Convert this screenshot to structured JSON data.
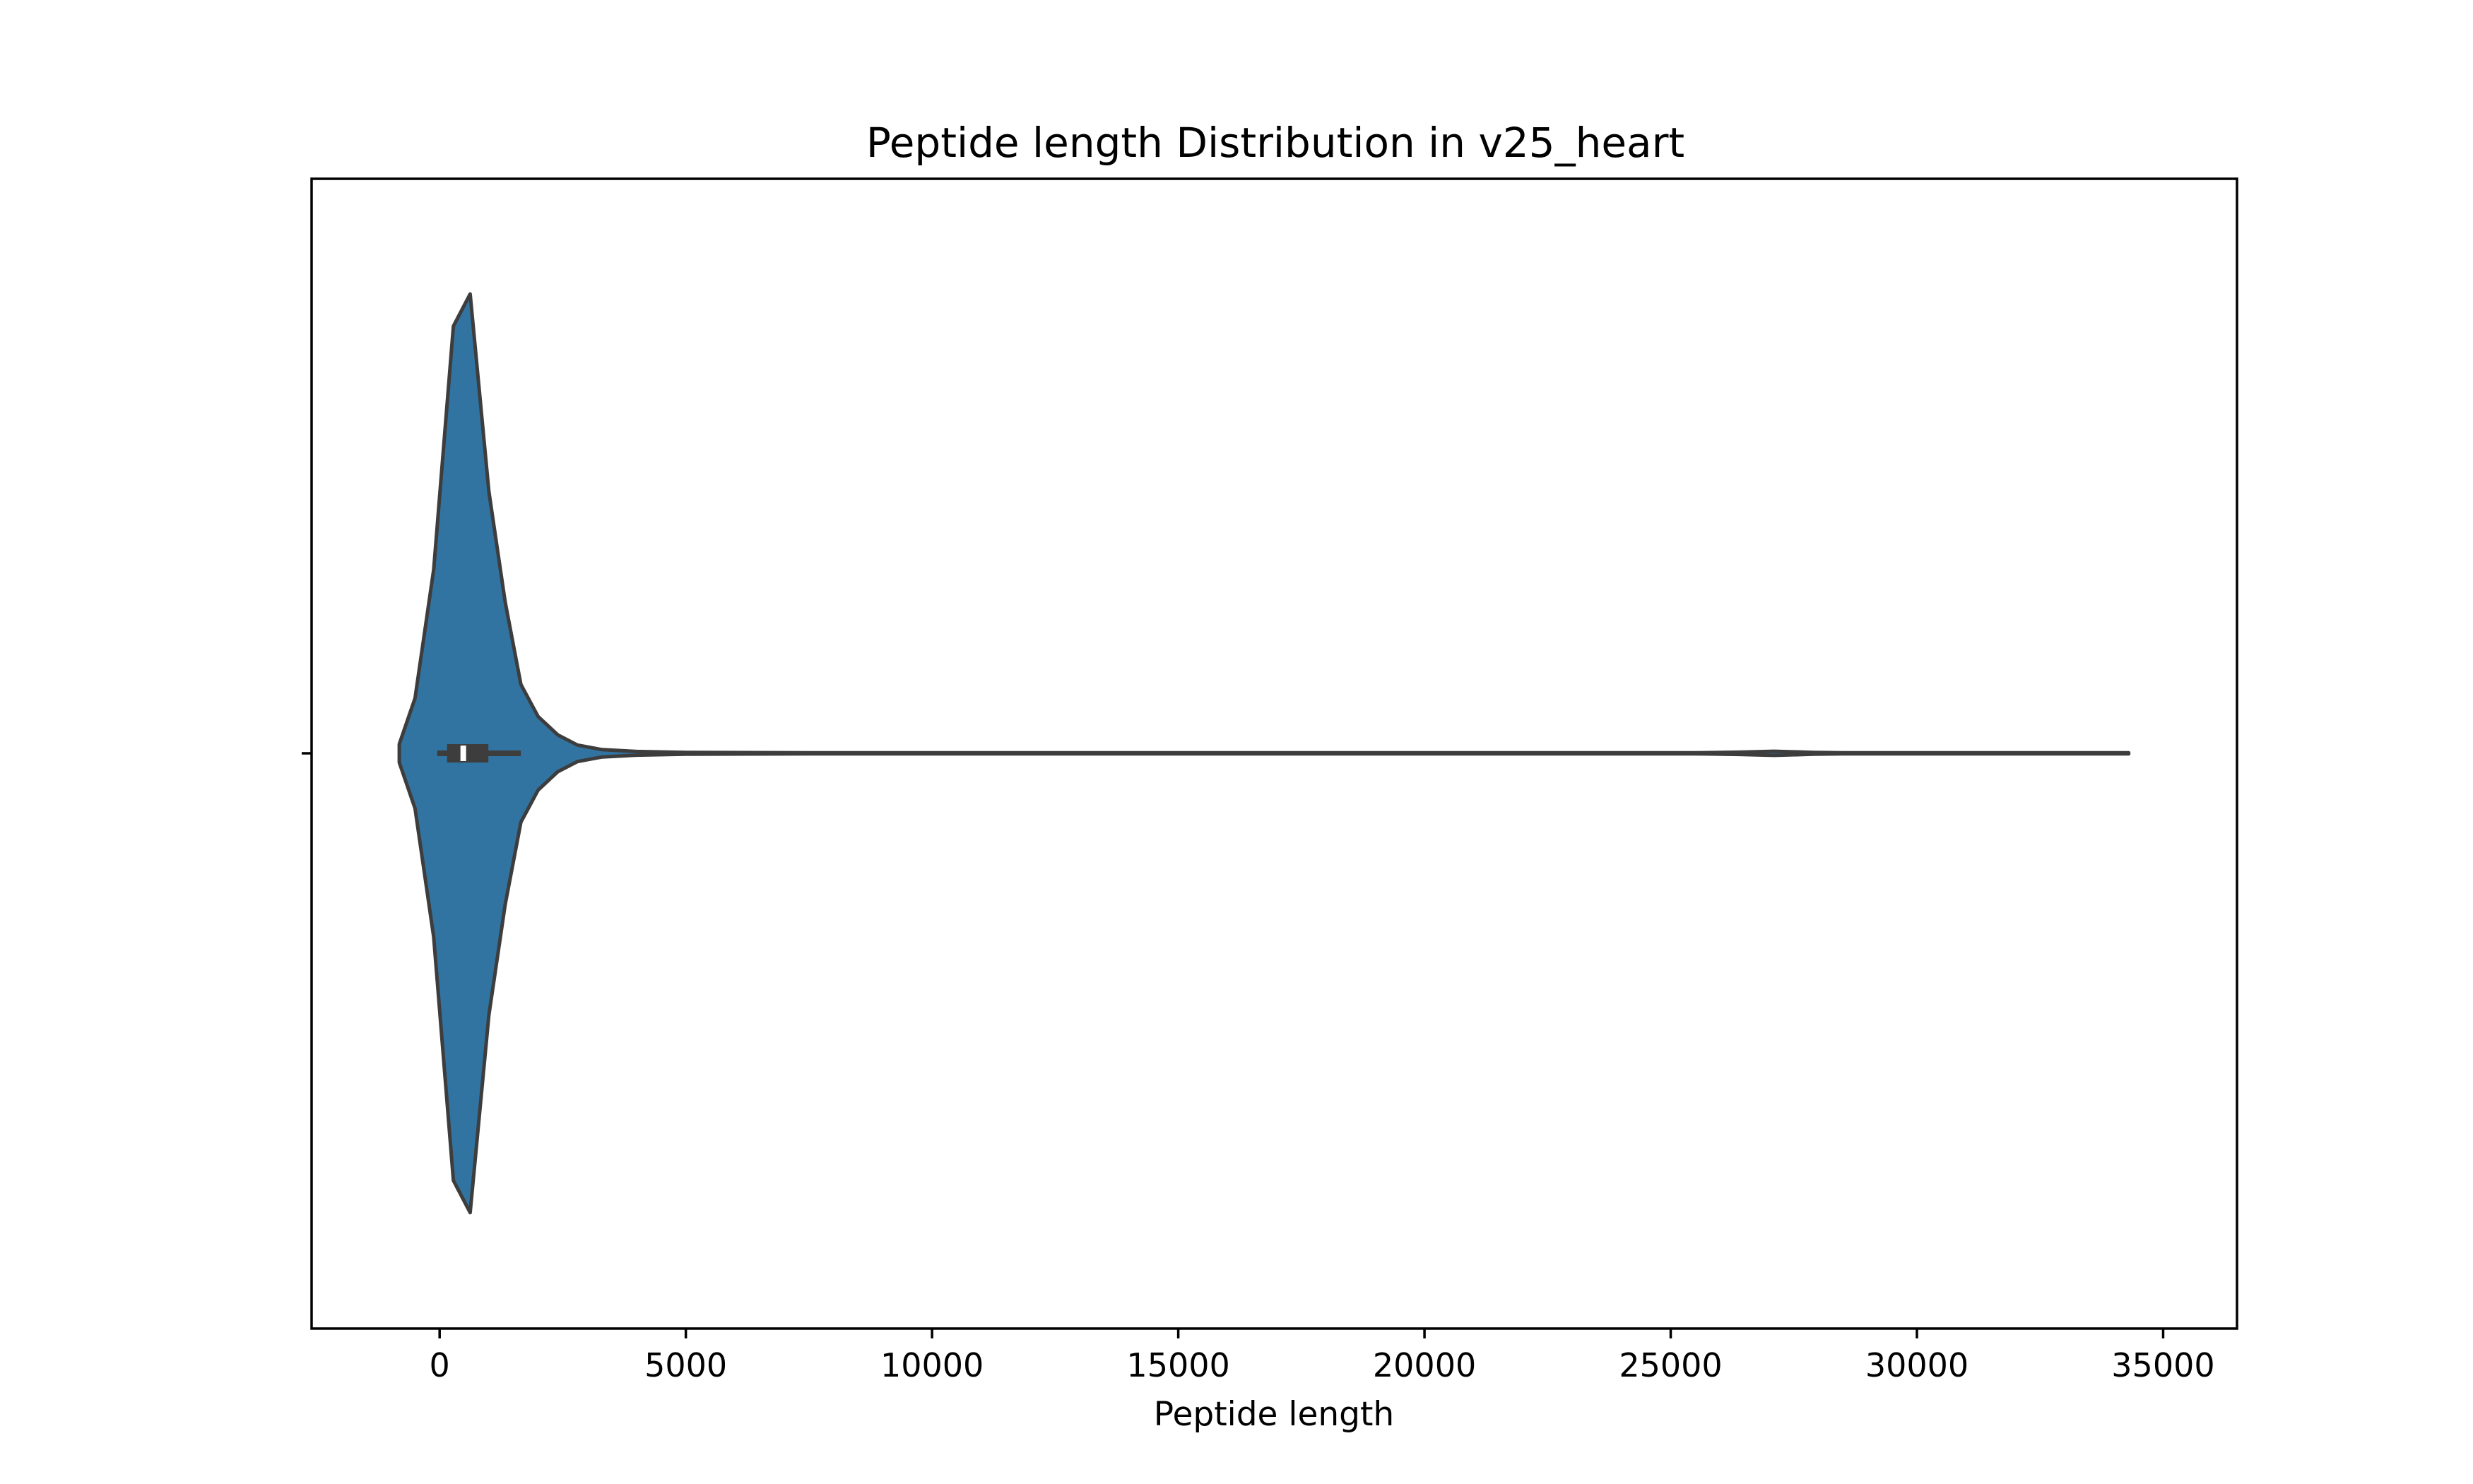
{
  "chart_data": {
    "type": "violin",
    "title": "Peptide length Distribution in v25_heart",
    "xlabel": "Peptide length",
    "ylabel": "",
    "xlim": [
      -2600,
      36500
    ],
    "xticks": [
      0,
      5000,
      10000,
      15000,
      20000,
      25000,
      30000,
      35000
    ],
    "xtick_labels": [
      "0",
      "5000",
      "10000",
      "15000",
      "20000",
      "25000",
      "30000",
      "35000"
    ],
    "grid": false,
    "colors": {
      "fill": "#3274a1",
      "edge": "#3d3d3d",
      "median": "#ffffff"
    },
    "density": [
      [
        -820,
        0.02
      ],
      [
        -500,
        0.12
      ],
      [
        -120,
        0.4
      ],
      [
        280,
        0.93
      ],
      [
        620,
        1.0
      ],
      [
        1000,
        0.57
      ],
      [
        1330,
        0.33
      ],
      [
        1650,
        0.15
      ],
      [
        2000,
        0.08
      ],
      [
        2400,
        0.04
      ],
      [
        2800,
        0.018
      ],
      [
        3300,
        0.008
      ],
      [
        4000,
        0.004
      ],
      [
        5000,
        0.002
      ],
      [
        8000,
        0.001
      ],
      [
        9000,
        0.0004
      ],
      [
        25500,
        0.0004
      ],
      [
        26400,
        0.0025
      ],
      [
        27100,
        0.0045
      ],
      [
        27900,
        0.002
      ],
      [
        28500,
        0.0004
      ],
      [
        32500,
        0.0004
      ],
      [
        33300,
        0.0012
      ],
      [
        34000,
        0.0006
      ],
      [
        34300,
        0.0002
      ]
    ],
    "box": {
      "whisker_low": -50,
      "q1": 150,
      "median": 480,
      "q3": 990,
      "whisker_high": 1650
    }
  }
}
